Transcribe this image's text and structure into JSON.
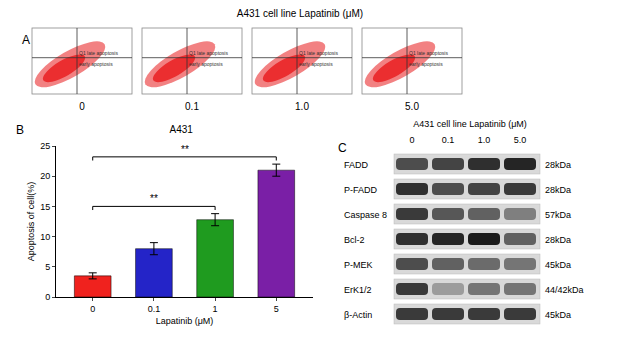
{
  "panel_a": {
    "label": "A",
    "title": "A431 cell line Lapatinib (μM)",
    "plots": [
      "0",
      "0.1",
      "1.0",
      "5.0"
    ],
    "quadrant_labels": [
      "Q1",
      "late apoptosis",
      "early apoptosis"
    ],
    "color": "#e8191c"
  },
  "chart_data": {
    "type": "bar",
    "panel_label": "B",
    "title": "A431",
    "x_label": "Lapatinib (μM)",
    "y_label": "Apoptosis of cell(%)",
    "categories": [
      "0",
      "0.1",
      "1",
      "5"
    ],
    "values": [
      3.5,
      8.0,
      12.8,
      21.0
    ],
    "errors": [
      0.5,
      1.0,
      1.0,
      1.0
    ],
    "colors": [
      "#f0221e",
      "#2424c8",
      "#1f9b1f",
      "#7a1fa6"
    ],
    "ylim": [
      0,
      25
    ],
    "yticks": [
      0,
      5,
      10,
      15,
      20,
      25
    ],
    "grid": false,
    "comparisons": [
      {
        "from": "0",
        "to": "1",
        "label": "**"
      },
      {
        "from": "0",
        "to": "5",
        "label": "**"
      }
    ]
  },
  "panel_c": {
    "label": "C",
    "title": "A431 cell line Lapatinib (μM)",
    "lanes": [
      "0",
      "0.1",
      "1.0",
      "5.0"
    ],
    "rows": [
      {
        "name": "FADD",
        "size": "28kDa",
        "band_intensity": [
          0.7,
          0.75,
          0.85,
          0.9
        ]
      },
      {
        "name": "P-FADD",
        "size": "28kDa",
        "band_intensity": [
          0.85,
          0.7,
          0.75,
          0.8
        ]
      },
      {
        "name": "Caspase 8",
        "size": "57kDa",
        "band_intensity": [
          0.8,
          0.65,
          0.6,
          0.45
        ]
      },
      {
        "name": "Bcl-2",
        "size": "28kDa",
        "band_intensity": [
          0.85,
          0.9,
          0.95,
          0.6
        ]
      },
      {
        "name": "P-MEK",
        "size": "45kDa",
        "band_intensity": [
          0.7,
          0.6,
          0.55,
          0.5
        ]
      },
      {
        "name": "ErK1/2",
        "size": "44/42kDa",
        "band_intensity": [
          0.8,
          0.3,
          0.5,
          0.5
        ]
      },
      {
        "name": "β-Actin",
        "size": "45kDa",
        "band_intensity": [
          0.8,
          0.8,
          0.8,
          0.8
        ]
      }
    ]
  }
}
